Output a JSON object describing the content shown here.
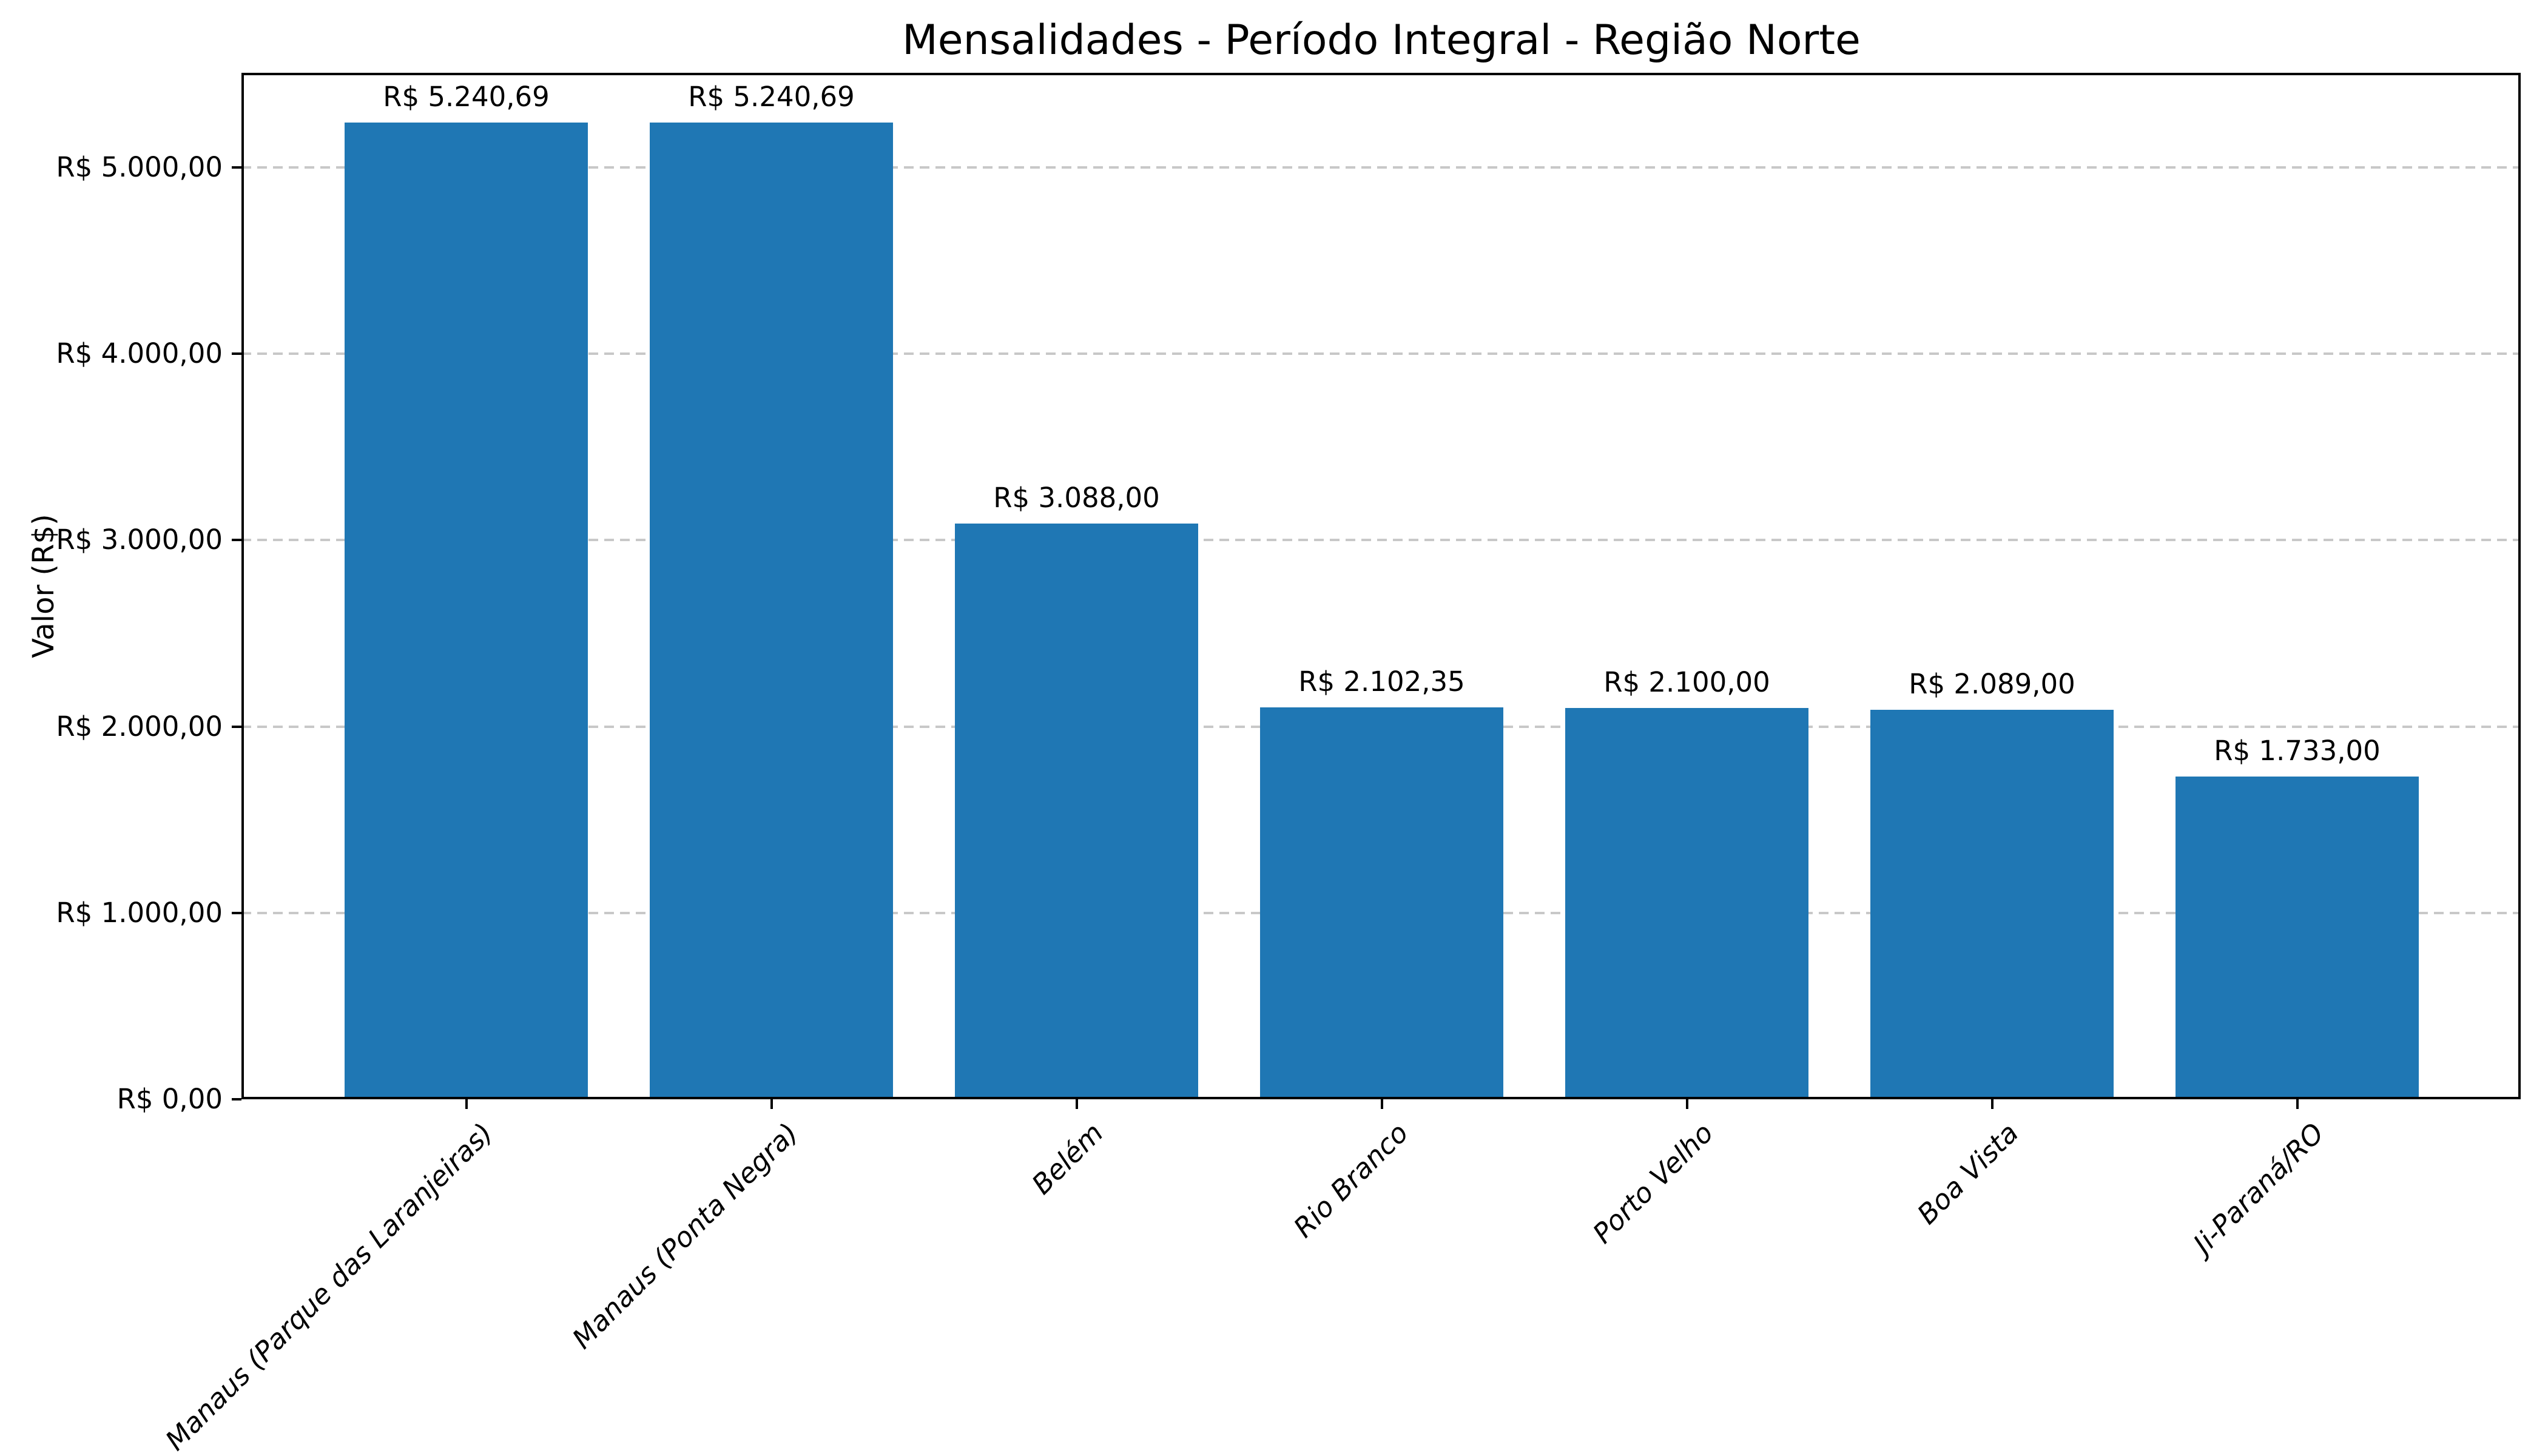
{
  "chart_data": {
    "type": "bar",
    "title": "Mensalidades - Período Integral - Região Norte",
    "ylabel": "Valor (R$)",
    "categories": [
      "Manaus (Parque das Laranjeiras)",
      "Manaus (Ponta Negra)",
      "Belém",
      "Rio Branco",
      "Porto Velho",
      "Boa Vista",
      "Ji-Paraná/RO"
    ],
    "values": [
      5240.69,
      5240.69,
      3088.0,
      2102.35,
      2100.0,
      2089.0,
      1733.0
    ],
    "value_labels": [
      "R$ 5.240,69",
      "R$ 5.240,69",
      "R$ 3.088,00",
      "R$ 2.102,35",
      "R$ 2.100,00",
      "R$ 2.089,00",
      "R$ 1.733,00"
    ],
    "y_ticks": [
      {
        "value": 0,
        "label": "R$ 0,00"
      },
      {
        "value": 1000,
        "label": "R$ 1.000,00"
      },
      {
        "value": 2000,
        "label": "R$ 2.000,00"
      },
      {
        "value": 3000,
        "label": "R$ 3.000,00"
      },
      {
        "value": 4000,
        "label": "R$ 4.000,00"
      },
      {
        "value": 5000,
        "label": "R$ 5.000,00"
      }
    ],
    "ylim": [
      0,
      5508
    ],
    "grid": "horizontal dashed",
    "legend": "none",
    "colors": {
      "bar": "#1f77b4",
      "grid": "#c8c8c8",
      "axis": "#000000",
      "background": "#ffffff"
    }
  }
}
